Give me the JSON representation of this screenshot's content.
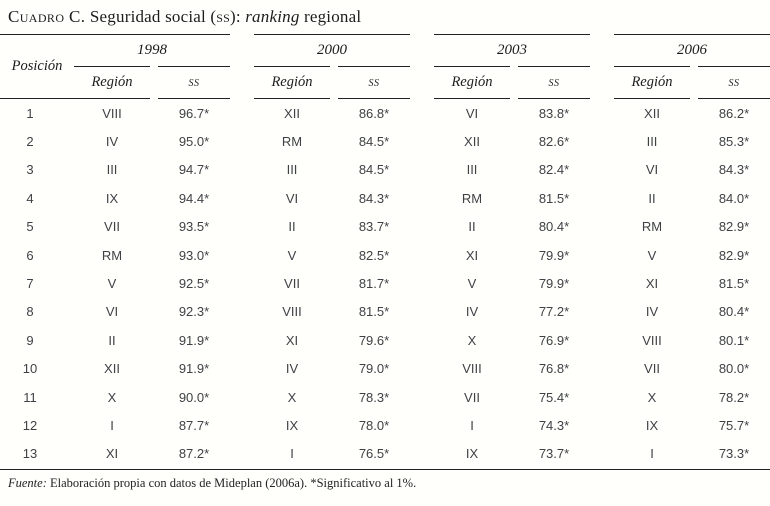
{
  "title": {
    "label": "Cuadro C.",
    "text_pre": " Seguridad social (",
    "text_sc": "ss",
    "text_post": "): ",
    "italic_word": "ranking",
    "suffix": " regional"
  },
  "table": {
    "position_label": "Posición",
    "region_label": "Región",
    "ss_label": "ss",
    "years": [
      "1998",
      "2000",
      "2003",
      "2006"
    ],
    "rows": [
      {
        "pos": "1",
        "cells": [
          [
            "VIII",
            "96.7*"
          ],
          [
            "XII",
            "86.8*"
          ],
          [
            "VI",
            "83.8*"
          ],
          [
            "XII",
            "86.2*"
          ]
        ]
      },
      {
        "pos": "2",
        "cells": [
          [
            "IV",
            "95.0*"
          ],
          [
            "RM",
            "84.5*"
          ],
          [
            "XII",
            "82.6*"
          ],
          [
            "III",
            "85.3*"
          ]
        ]
      },
      {
        "pos": "3",
        "cells": [
          [
            "III",
            "94.7*"
          ],
          [
            "III",
            "84.5*"
          ],
          [
            "III",
            "82.4*"
          ],
          [
            "VI",
            "84.3*"
          ]
        ]
      },
      {
        "pos": "4",
        "cells": [
          [
            "IX",
            "94.4*"
          ],
          [
            "VI",
            "84.3*"
          ],
          [
            "RM",
            "81.5*"
          ],
          [
            "II",
            "84.0*"
          ]
        ]
      },
      {
        "pos": "5",
        "cells": [
          [
            "VII",
            "93.5*"
          ],
          [
            "II",
            "83.7*"
          ],
          [
            "II",
            "80.4*"
          ],
          [
            "RM",
            "82.9*"
          ]
        ]
      },
      {
        "pos": "6",
        "cells": [
          [
            "RM",
            "93.0*"
          ],
          [
            "V",
            "82.5*"
          ],
          [
            "XI",
            "79.9*"
          ],
          [
            "V",
            "82.9*"
          ]
        ]
      },
      {
        "pos": "7",
        "cells": [
          [
            "V",
            "92.5*"
          ],
          [
            "VII",
            "81.7*"
          ],
          [
            "V",
            "79.9*"
          ],
          [
            "XI",
            "81.5*"
          ]
        ]
      },
      {
        "pos": "8",
        "cells": [
          [
            "VI",
            "92.3*"
          ],
          [
            "VIII",
            "81.5*"
          ],
          [
            "IV",
            "77.2*"
          ],
          [
            "IV",
            "80.4*"
          ]
        ]
      },
      {
        "pos": "9",
        "cells": [
          [
            "II",
            "91.9*"
          ],
          [
            "XI",
            "79.6*"
          ],
          [
            "X",
            "76.9*"
          ],
          [
            "VIII",
            "80.1*"
          ]
        ]
      },
      {
        "pos": "10",
        "cells": [
          [
            "XII",
            "91.9*"
          ],
          [
            "IV",
            "79.0*"
          ],
          [
            "VIII",
            "76.8*"
          ],
          [
            "VII",
            "80.0*"
          ]
        ]
      },
      {
        "pos": "11",
        "cells": [
          [
            "X",
            "90.0*"
          ],
          [
            "X",
            "78.3*"
          ],
          [
            "VII",
            "75.4*"
          ],
          [
            "X",
            "78.2*"
          ]
        ]
      },
      {
        "pos": "12",
        "cells": [
          [
            "I",
            "87.7*"
          ],
          [
            "IX",
            "78.0*"
          ],
          [
            "I",
            "74.3*"
          ],
          [
            "IX",
            "75.7*"
          ]
        ]
      },
      {
        "pos": "13",
        "cells": [
          [
            "XI",
            "87.2*"
          ],
          [
            "I",
            "76.5*"
          ],
          [
            "IX",
            "73.7*"
          ],
          [
            "I",
            "73.3*"
          ]
        ]
      }
    ]
  },
  "footer": {
    "source_label": "Fuente:",
    "source_text": " Elaboración propia con datos de Mideplan (2006a). *Significativo al 1%."
  },
  "colors": {
    "background": "#fffffc",
    "rule": "#222222",
    "header_text": "#1c1c1c",
    "data_text": "#3f4145"
  }
}
